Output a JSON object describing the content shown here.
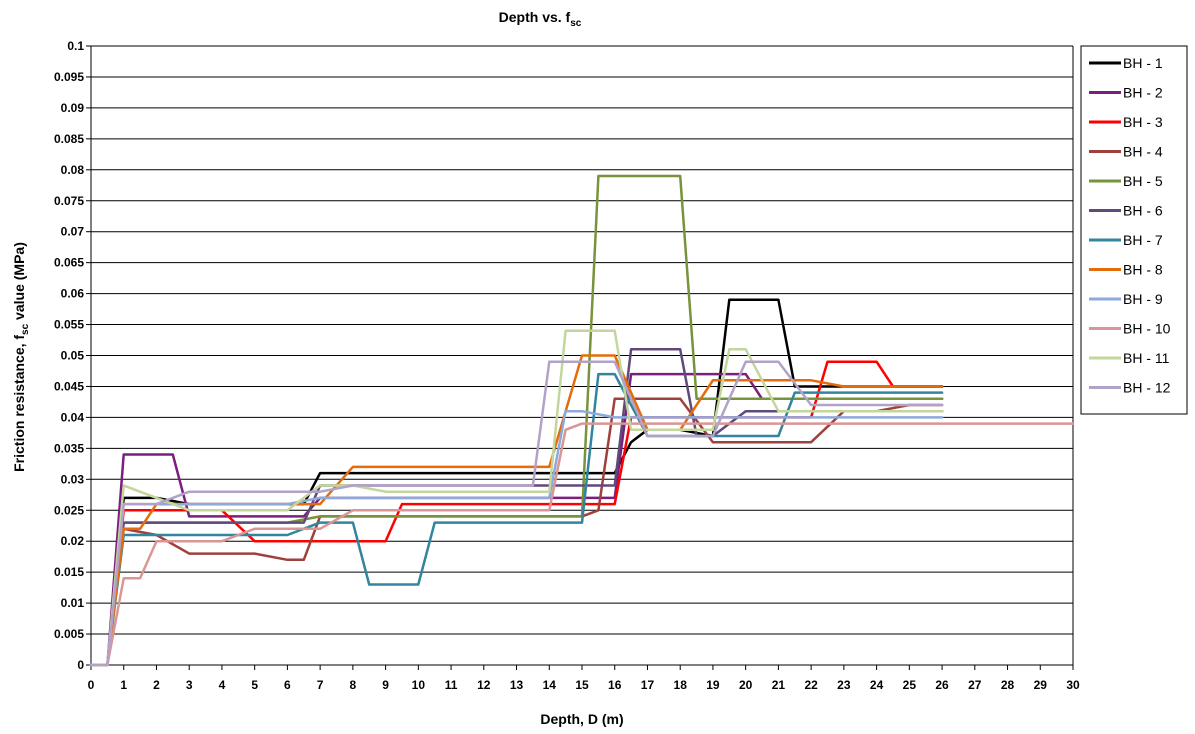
{
  "chart_data": {
    "type": "line",
    "title": "Depth vs. f",
    "title_sub": "sc",
    "xlabel": "Depth, D (m)",
    "ylabel_pre": "Friction resistance, f",
    "ylabel_sub": "sc",
    "ylabel_post": " value (MPa)",
    "xlim": [
      0,
      30
    ],
    "ylim": [
      0,
      0.1
    ],
    "x_ticks": [
      "0",
      "1",
      "2",
      "3",
      "4",
      "5",
      "6",
      "7",
      "8",
      "9",
      "10",
      "11",
      "12",
      "13",
      "14",
      "15",
      "16",
      "17",
      "18",
      "19",
      "20",
      "21",
      "22",
      "23",
      "24",
      "25",
      "26",
      "27",
      "28",
      "29",
      "30"
    ],
    "y_ticks": [
      "0",
      "0.005",
      "0.01",
      "0.015",
      "0.02",
      "0.025",
      "0.03",
      "0.035",
      "0.04",
      "0.045",
      "0.05",
      "0.055",
      "0.06",
      "0.065",
      "0.07",
      "0.075",
      "0.08",
      "0.085",
      "0.09",
      "0.095",
      "0.1"
    ],
    "grid": "horizontal",
    "legend_position": "right",
    "series": [
      {
        "name": "BH - 1",
        "color": "#000000",
        "x": [
          0,
          0.5,
          1,
          2,
          3,
          4,
          5,
          6,
          6.5,
          7,
          8,
          9,
          10,
          11,
          12,
          13,
          14,
          15,
          15.5,
          16,
          16.5,
          17,
          18,
          19,
          19.5,
          20,
          21,
          21.5,
          22,
          23,
          24,
          25,
          26
        ],
        "y": [
          0,
          0,
          0.027,
          0.027,
          0.026,
          0.026,
          0.026,
          0.026,
          0.026,
          0.031,
          0.031,
          0.031,
          0.031,
          0.031,
          0.031,
          0.031,
          0.031,
          0.031,
          0.031,
          0.031,
          0.036,
          0.038,
          0.038,
          0.037,
          0.059,
          0.059,
          0.059,
          0.045,
          0.045,
          0.045,
          0.045,
          0.045,
          0.045
        ]
      },
      {
        "name": "BH - 2",
        "color": "#7b1f7f",
        "x": [
          0,
          0.5,
          1,
          2,
          2.5,
          3,
          4,
          5,
          6,
          6.5,
          7,
          8,
          9,
          10,
          11,
          12,
          13,
          14,
          15,
          16,
          16.5,
          17,
          18,
          19,
          20,
          20.5,
          21,
          22,
          23,
          24,
          25,
          26
        ],
        "y": [
          0,
          0,
          0.034,
          0.034,
          0.034,
          0.024,
          0.024,
          0.024,
          0.024,
          0.024,
          0.027,
          0.027,
          0.027,
          0.027,
          0.027,
          0.027,
          0.027,
          0.027,
          0.027,
          0.027,
          0.047,
          0.047,
          0.047,
          0.047,
          0.047,
          0.043,
          0.043,
          0.043,
          0.043,
          0.043,
          0.043,
          0.043
        ]
      },
      {
        "name": "BH - 3",
        "color": "#ff0000",
        "x": [
          0,
          0.5,
          1,
          2,
          3,
          4,
          5,
          6,
          7,
          8,
          9,
          9.5,
          10,
          11,
          12,
          13,
          14,
          15,
          16,
          16.5,
          17,
          18,
          19,
          20,
          21,
          22,
          22.5,
          23,
          24,
          24.5,
          25,
          26
        ],
        "y": [
          0,
          0,
          0.025,
          0.025,
          0.025,
          0.025,
          0.02,
          0.02,
          0.02,
          0.02,
          0.02,
          0.026,
          0.026,
          0.026,
          0.026,
          0.026,
          0.026,
          0.026,
          0.026,
          0.04,
          0.04,
          0.04,
          0.04,
          0.04,
          0.04,
          0.04,
          0.049,
          0.049,
          0.049,
          0.045,
          0.045,
          0.045
        ]
      },
      {
        "name": "BH - 4",
        "color": "#a0403c",
        "x": [
          0,
          0.5,
          1,
          2,
          3,
          4,
          5,
          6,
          6.5,
          7,
          8,
          9,
          10,
          11,
          12,
          13,
          14,
          15,
          15.5,
          16,
          16.5,
          17,
          18,
          19,
          20,
          21,
          22,
          23,
          24,
          25,
          26
        ],
        "y": [
          0,
          0,
          0.022,
          0.021,
          0.018,
          0.018,
          0.018,
          0.017,
          0.017,
          0.024,
          0.024,
          0.024,
          0.024,
          0.024,
          0.024,
          0.024,
          0.024,
          0.024,
          0.025,
          0.043,
          0.043,
          0.043,
          0.043,
          0.036,
          0.036,
          0.036,
          0.036,
          0.041,
          0.041,
          0.042,
          0.042
        ]
      },
      {
        "name": "BH - 5",
        "color": "#77933c",
        "x": [
          0,
          0.5,
          1,
          2,
          3,
          4,
          5,
          6,
          7,
          8,
          9,
          10,
          11,
          12,
          13,
          14,
          15,
          15.5,
          16,
          17,
          18,
          18.5,
          19,
          20,
          21,
          22,
          23,
          24,
          25,
          26
        ],
        "y": [
          0,
          0,
          0.023,
          0.023,
          0.023,
          0.023,
          0.023,
          0.023,
          0.024,
          0.024,
          0.024,
          0.024,
          0.024,
          0.024,
          0.024,
          0.024,
          0.024,
          0.079,
          0.079,
          0.079,
          0.079,
          0.043,
          0.043,
          0.043,
          0.043,
          0.043,
          0.043,
          0.043,
          0.043,
          0.043
        ]
      },
      {
        "name": "BH - 6",
        "color": "#604a7b",
        "x": [
          0,
          0.5,
          1,
          2,
          3,
          4,
          5,
          6,
          6.5,
          7,
          8,
          9,
          10,
          11,
          12,
          13,
          14,
          15,
          16,
          16.5,
          17,
          18,
          18.5,
          19,
          20,
          21,
          22,
          23,
          24,
          25,
          26
        ],
        "y": [
          0,
          0,
          0.023,
          0.023,
          0.023,
          0.023,
          0.023,
          0.023,
          0.023,
          0.029,
          0.029,
          0.029,
          0.029,
          0.029,
          0.029,
          0.029,
          0.029,
          0.029,
          0.029,
          0.051,
          0.051,
          0.051,
          0.037,
          0.037,
          0.041,
          0.041,
          0.041,
          0.041,
          0.041,
          0.041,
          0.041
        ]
      },
      {
        "name": "BH - 7",
        "color": "#31859c",
        "x": [
          0,
          0.5,
          1,
          2,
          3,
          4,
          5,
          6,
          7,
          8,
          8.5,
          9,
          10,
          10.5,
          11,
          12,
          13,
          14,
          15,
          15.5,
          16,
          17,
          18,
          19,
          20,
          21,
          21.5,
          22,
          23,
          24,
          25,
          26
        ],
        "y": [
          0,
          0,
          0.021,
          0.021,
          0.021,
          0.021,
          0.021,
          0.021,
          0.023,
          0.023,
          0.013,
          0.013,
          0.013,
          0.023,
          0.023,
          0.023,
          0.023,
          0.023,
          0.023,
          0.047,
          0.047,
          0.037,
          0.037,
          0.037,
          0.037,
          0.037,
          0.044,
          0.044,
          0.044,
          0.044,
          0.044,
          0.044
        ]
      },
      {
        "name": "BH - 8",
        "color": "#e46c0a",
        "x": [
          0,
          0.5,
          1,
          1.5,
          2,
          3,
          4,
          5,
          6,
          7,
          8,
          9,
          10,
          11,
          12,
          13,
          14,
          15,
          16,
          17,
          18,
          19,
          20,
          21,
          22,
          23,
          24,
          25,
          26
        ],
        "y": [
          0,
          0,
          0.022,
          0.022,
          0.026,
          0.026,
          0.026,
          0.026,
          0.026,
          0.026,
          0.032,
          0.032,
          0.032,
          0.032,
          0.032,
          0.032,
          0.032,
          0.05,
          0.05,
          0.038,
          0.038,
          0.046,
          0.046,
          0.046,
          0.046,
          0.045,
          0.045,
          0.045,
          0.045
        ]
      },
      {
        "name": "BH - 9",
        "color": "#8ea9db",
        "x": [
          0,
          0.5,
          1,
          2,
          3,
          4,
          5,
          6,
          7,
          8,
          9,
          10,
          11,
          12,
          13,
          14,
          14.5,
          15,
          16,
          17,
          18,
          19,
          20,
          21,
          22,
          23,
          24,
          25,
          26
        ],
        "y": [
          0,
          0,
          0.026,
          0.026,
          0.026,
          0.026,
          0.026,
          0.026,
          0.027,
          0.027,
          0.027,
          0.027,
          0.027,
          0.027,
          0.027,
          0.027,
          0.041,
          0.041,
          0.04,
          0.04,
          0.04,
          0.04,
          0.04,
          0.04,
          0.04,
          0.04,
          0.04,
          0.04,
          0.04
        ]
      },
      {
        "name": "BH - 10",
        "color": "#d99694",
        "x": [
          0,
          0.5,
          1,
          1.5,
          2,
          3,
          4,
          5,
          6,
          7,
          8,
          9,
          10,
          11,
          12,
          13,
          14,
          14.5,
          15,
          16,
          17,
          18,
          19,
          20,
          21,
          22,
          23,
          24,
          25,
          26,
          27,
          28,
          29,
          30
        ],
        "y": [
          0,
          0,
          0.014,
          0.014,
          0.02,
          0.02,
          0.02,
          0.022,
          0.022,
          0.022,
          0.025,
          0.025,
          0.025,
          0.025,
          0.025,
          0.025,
          0.025,
          0.038,
          0.039,
          0.039,
          0.039,
          0.039,
          0.039,
          0.039,
          0.039,
          0.039,
          0.039,
          0.039,
          0.039,
          0.039,
          0.039,
          0.039,
          0.039,
          0.039
        ]
      },
      {
        "name": "BH - 11",
        "color": "#c3d69b",
        "x": [
          0,
          0.5,
          1,
          2,
          3,
          4,
          5,
          6,
          7,
          8,
          9,
          10,
          11,
          12,
          13,
          14,
          14.5,
          15,
          16,
          16.5,
          17,
          18,
          19,
          19.5,
          20,
          21,
          22,
          23,
          24,
          25,
          26
        ],
        "y": [
          0,
          0,
          0.029,
          0.027,
          0.025,
          0.025,
          0.025,
          0.025,
          0.029,
          0.029,
          0.028,
          0.028,
          0.028,
          0.028,
          0.028,
          0.028,
          0.054,
          0.054,
          0.054,
          0.038,
          0.038,
          0.038,
          0.038,
          0.051,
          0.051,
          0.041,
          0.041,
          0.041,
          0.041,
          0.041,
          0.041
        ]
      },
      {
        "name": "BH - 12",
        "color": "#b3a2c7",
        "x": [
          0,
          0.5,
          1,
          2,
          3,
          4,
          5,
          6,
          7,
          8,
          9,
          10,
          11,
          12,
          13,
          13.5,
          14,
          15,
          16,
          17,
          18,
          19,
          20,
          21,
          22,
          23,
          24,
          25,
          26
        ],
        "y": [
          0,
          0,
          0.026,
          0.026,
          0.028,
          0.028,
          0.028,
          0.028,
          0.028,
          0.029,
          0.029,
          0.029,
          0.029,
          0.029,
          0.029,
          0.029,
          0.049,
          0.049,
          0.049,
          0.037,
          0.037,
          0.037,
          0.049,
          0.049,
          0.042,
          0.042,
          0.042,
          0.042,
          0.042
        ]
      }
    ]
  }
}
